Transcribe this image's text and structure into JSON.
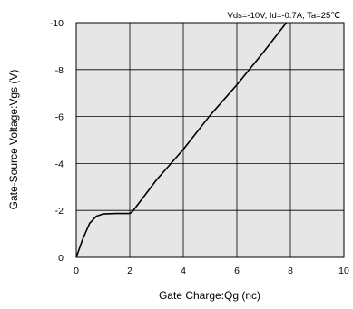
{
  "chart_data": {
    "type": "line",
    "title": "",
    "annotation": "Vds=-10V, Id=-0.7A, Ta=25℃",
    "xlabel": "Gate Charge:Qg  (nc)",
    "ylabel": "Gate-Source Voltage:Vgs  (V)",
    "xlim": [
      0,
      10
    ],
    "ylim": [
      0,
      -10
    ],
    "x_ticks": [
      "0",
      "2",
      "4",
      "6",
      "8",
      "10"
    ],
    "x_tick_values": [
      0,
      2,
      4,
      6,
      8,
      10
    ],
    "y_ticks": [
      "0",
      "-2",
      "-4",
      "-6",
      "-8",
      "-10"
    ],
    "y_tick_values": [
      0,
      -2,
      -4,
      -6,
      -8,
      -10
    ],
    "grid": true,
    "background": "#e6e6e6",
    "line_color": "#000000",
    "series": [
      {
        "x": [
          0,
          0.25,
          0.5,
          0.75,
          1.0,
          1.5,
          2.0,
          2.1,
          2.3,
          3.0,
          4.0,
          5.0,
          6.0,
          7.0,
          7.85
        ],
        "y": [
          0,
          -0.8,
          -1.45,
          -1.75,
          -1.85,
          -1.87,
          -1.87,
          -1.95,
          -2.25,
          -3.3,
          -4.6,
          -6.05,
          -7.35,
          -8.75,
          -10.0
        ]
      }
    ]
  }
}
